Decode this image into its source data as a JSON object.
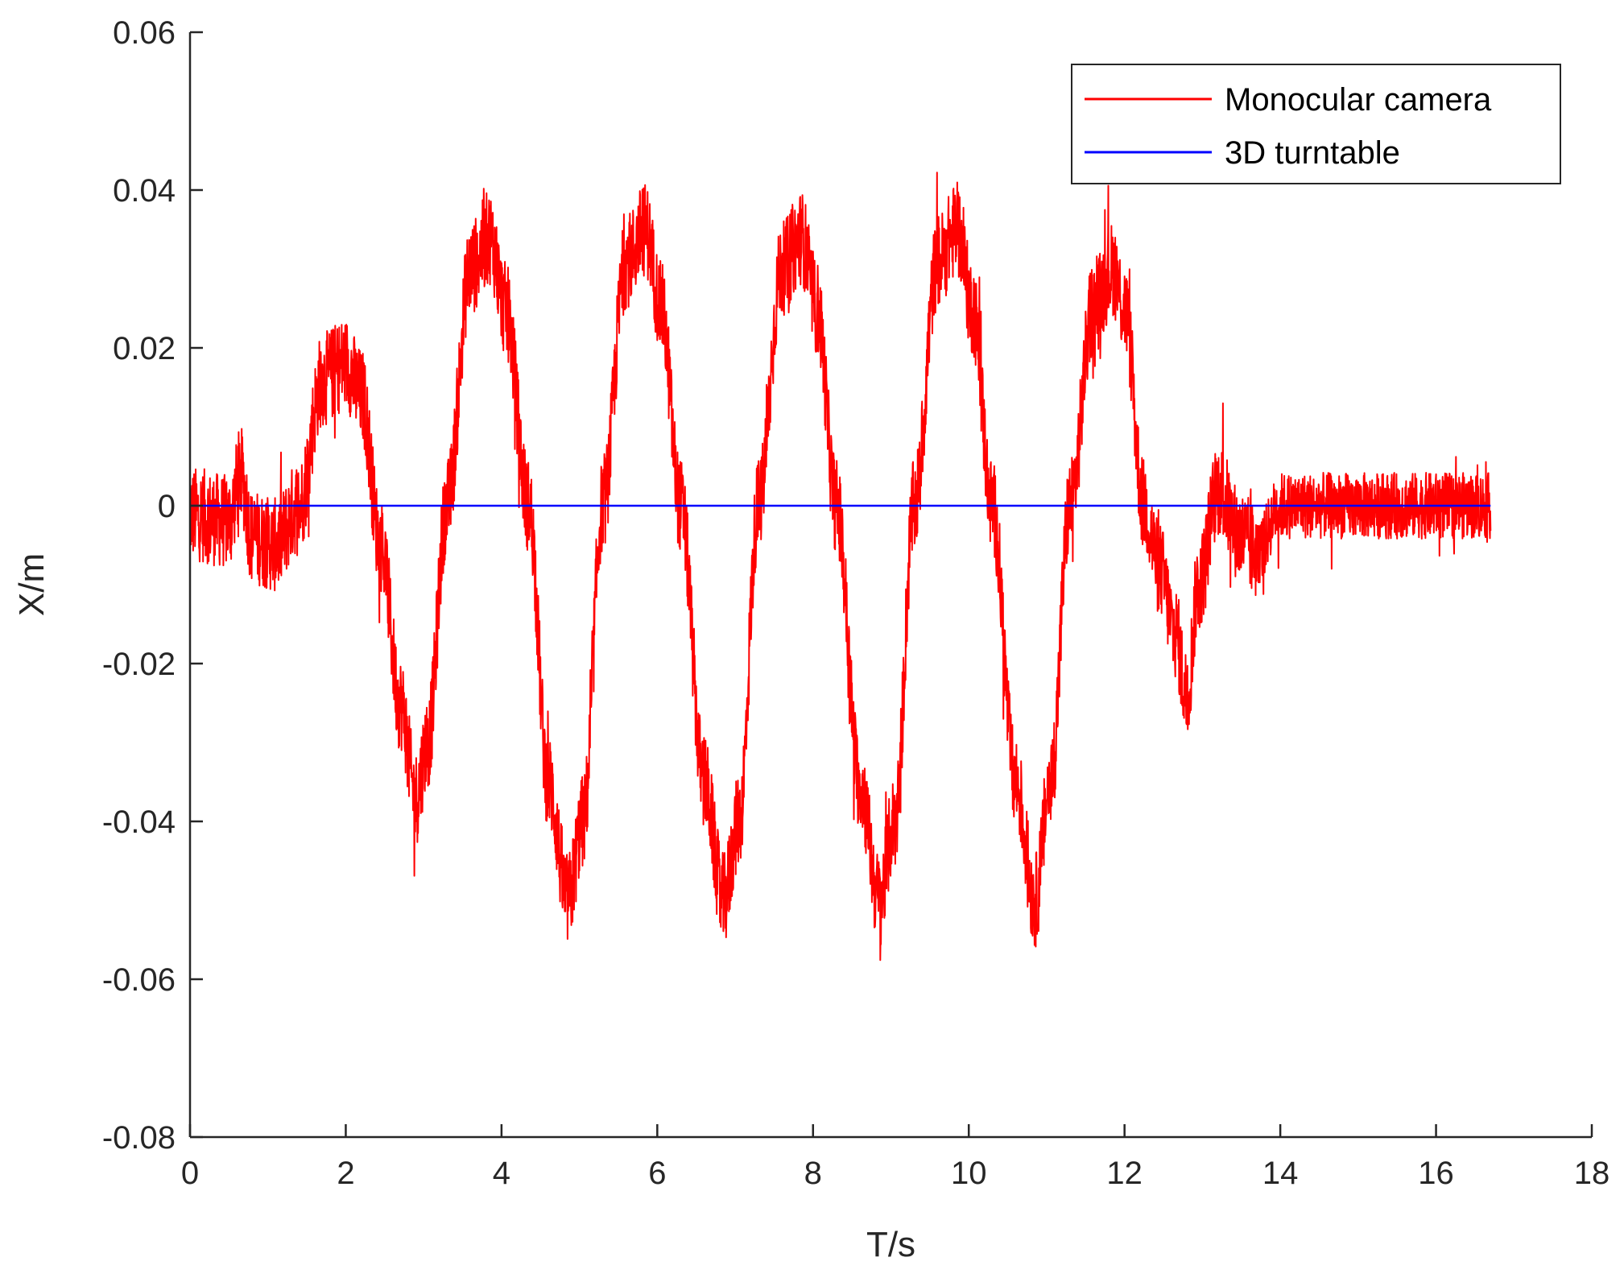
{
  "chart_data": {
    "type": "line",
    "title": "",
    "xlabel": "T/s",
    "ylabel": "X/m",
    "xlim": [
      0,
      18
    ],
    "ylim": [
      -0.08,
      0.06
    ],
    "x_ticks": [
      "0",
      "2",
      "4",
      "6",
      "8",
      "10",
      "12",
      "14",
      "16",
      "18"
    ],
    "y_ticks": [
      "-0.08",
      "-0.06",
      "-0.04",
      "-0.02",
      "0",
      "0.02",
      "0.04",
      "0.06"
    ],
    "grid": false,
    "legend_position": "top-right",
    "series": [
      {
        "name": "Monocular camera",
        "color": "#ff0000",
        "noise_amplitude": 0.006,
        "x": [
          0,
          0.5,
          0.65,
          0.8,
          1.1,
          1.4,
          1.7,
          2.0,
          2.2,
          2.45,
          2.7,
          2.9,
          3.05,
          3.3,
          3.6,
          3.85,
          4.05,
          4.35,
          4.6,
          4.85,
          5.05,
          5.3,
          5.6,
          5.85,
          6.05,
          6.3,
          6.6,
          6.85,
          7.05,
          7.3,
          7.6,
          7.85,
          8.05,
          8.3,
          8.6,
          8.85,
          9.05,
          9.3,
          9.6,
          9.85,
          10.05,
          10.3,
          10.6,
          10.85,
          11.05,
          11.3,
          11.6,
          11.85,
          12.0,
          12.25,
          12.45,
          12.65,
          12.8,
          12.95,
          13.2,
          13.5,
          13.7,
          14.0,
          15.0,
          16.0,
          16.7
        ],
        "y": [
          -0.001,
          -0.002,
          0.004,
          -0.004,
          -0.005,
          0.0,
          0.016,
          0.018,
          0.014,
          -0.005,
          -0.025,
          -0.037,
          -0.03,
          0.0,
          0.03,
          0.034,
          0.025,
          0.0,
          -0.035,
          -0.05,
          -0.04,
          0.0,
          0.031,
          0.035,
          0.025,
          0.0,
          -0.035,
          -0.05,
          -0.04,
          0.0,
          0.03,
          0.034,
          0.025,
          0.0,
          -0.035,
          -0.05,
          -0.04,
          0.0,
          0.031,
          0.035,
          0.025,
          0.0,
          -0.035,
          -0.05,
          -0.035,
          0.0,
          0.025,
          0.03,
          0.025,
          0.0,
          -0.008,
          -0.016,
          -0.024,
          -0.01,
          0.002,
          -0.004,
          -0.006,
          0.0,
          0.0,
          0.0,
          0.0
        ]
      },
      {
        "name": "3D turntable",
        "color": "#0000ff",
        "x": [
          0,
          16.7
        ],
        "y": [
          0,
          0
        ]
      }
    ]
  }
}
